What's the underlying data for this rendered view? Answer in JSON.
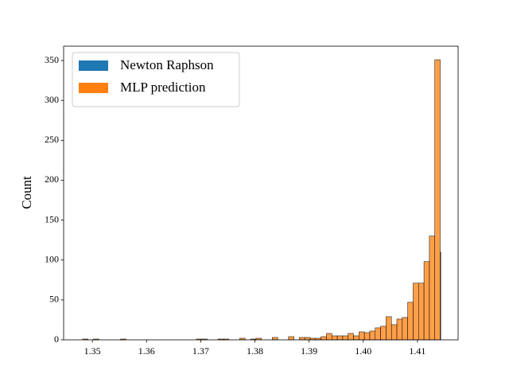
{
  "chart_data": {
    "type": "histogram",
    "ylabel": "Count",
    "xlim": [
      1.3447,
      1.4175
    ],
    "ylim": [
      0,
      368
    ],
    "xticks": [
      1.35,
      1.36,
      1.37,
      1.38,
      1.39,
      {
        "value": 1.4,
        "label": "1.40"
      },
      1.41
    ],
    "yticks": [
      0,
      50,
      100,
      150,
      200,
      250,
      300,
      350
    ],
    "grid": false,
    "legend": "upper left",
    "series": [
      {
        "name": "Newton Raphson",
        "color": "#1f77b4",
        "bins": [
          1.4142,
          1.4143
        ],
        "values": [
          110
        ]
      },
      {
        "name": "MLP prediction",
        "color": "#ff7f0e",
        "bins": [
          1.3472,
          1.3482,
          1.3492,
          1.3502,
          1.3512,
          1.3522,
          1.3532,
          1.3542,
          1.3552,
          1.3562,
          1.3572,
          1.3582,
          1.3592,
          1.3602,
          1.3612,
          1.3622,
          1.3632,
          1.3642,
          1.3652,
          1.3662,
          1.3672,
          1.3682,
          1.3692,
          1.3702,
          1.3712,
          1.3722,
          1.3732,
          1.3742,
          1.3752,
          1.3762,
          1.3772,
          1.3782,
          1.3792,
          1.3802,
          1.3812,
          1.3822,
          1.3832,
          1.3842,
          1.3852,
          1.3862,
          1.3872,
          1.3882,
          1.3892,
          1.3902,
          1.3912,
          1.3922,
          1.3932,
          1.3942,
          1.3952,
          1.3962,
          1.3972,
          1.3982,
          1.3992,
          1.4002,
          1.4012,
          1.4022,
          1.4032,
          1.4042,
          1.4052,
          1.4062,
          1.4072,
          1.4082,
          1.4092,
          1.4102,
          1.4112,
          1.4122,
          1.4132,
          1.4142
        ],
        "values": [
          0,
          1,
          0,
          1,
          0,
          0,
          0,
          0,
          1,
          0,
          0,
          0,
          0,
          0,
          0,
          0,
          0,
          0,
          0,
          0,
          0,
          0,
          1,
          1,
          0,
          0,
          1,
          1,
          0,
          0,
          2,
          0,
          1,
          2,
          0,
          0,
          3,
          0,
          0,
          4,
          0,
          3,
          3,
          2,
          2,
          4,
          8,
          5,
          5,
          5,
          8,
          5,
          10,
          9,
          11,
          15,
          17,
          29,
          19,
          26,
          28,
          47,
          71,
          71,
          98,
          130,
          351
        ]
      }
    ]
  }
}
